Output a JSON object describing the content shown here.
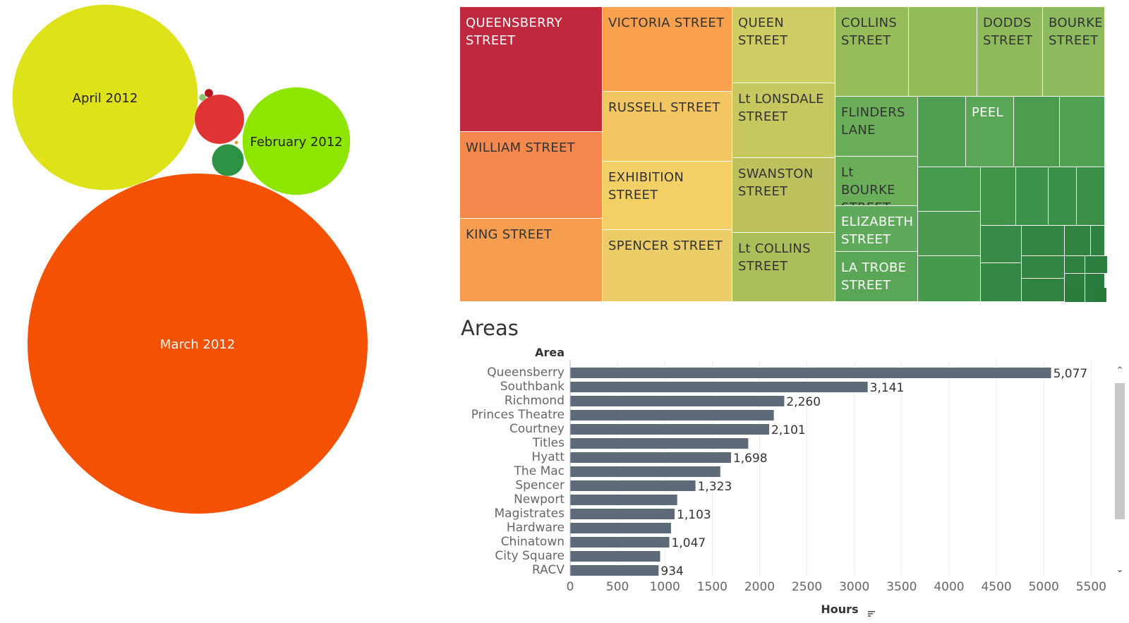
{
  "bubble_chart": {
    "type": "bubble",
    "bubbles": [
      {
        "label": "March 2012",
        "value": 1.0,
        "color": "#f45103",
        "text_color": "#ffffff"
      },
      {
        "label": "April 2012",
        "value": 0.297,
        "color": "#dee219",
        "text_color": "#222222"
      },
      {
        "label": "February 2012",
        "value": 0.1,
        "color": "#8ee600",
        "text_color": "#222222"
      },
      {
        "label": "",
        "value": 0.021,
        "color": "#e03434",
        "text_color": "#222222"
      },
      {
        "label": "",
        "value": 0.0087,
        "color": "#2e9244",
        "text_color": "#222222"
      },
      {
        "label": "",
        "value": 0.0006,
        "color": "#b5141f",
        "text_color": "#222222"
      },
      {
        "label": "",
        "value": 0.0004,
        "color": "#8cc66c",
        "text_color": "#222222"
      },
      {
        "label": "",
        "value": 0.0001,
        "color": "#e89a2b",
        "text_color": "#222222"
      }
    ]
  },
  "treemap": {
    "type": "treemap",
    "labeled_cells": [
      {
        "label": "QUEENSBERRY STREET",
        "color": "#c0283e",
        "text_color": "#ffffff"
      },
      {
        "label": "WILLIAM STREET",
        "color": "#f4884d",
        "text_color": "#333333"
      },
      {
        "label": "KING STREET",
        "color": "#f79d4f",
        "text_color": "#333333"
      },
      {
        "label": "VICTORIA STREET",
        "color": "#f9a14e",
        "text_color": "#333333"
      },
      {
        "label": "RUSSELL STREET",
        "color": "#f4c661",
        "text_color": "#333333"
      },
      {
        "label": "EXHIBITION STREET",
        "color": "#f3d066",
        "text_color": "#333333"
      },
      {
        "label": "SPENCER STREET",
        "color": "#ebcc67",
        "text_color": "#333333"
      },
      {
        "label": "QUEEN STREET",
        "color": "#cfcc63",
        "text_color": "#333333"
      },
      {
        "label": "Lt LONSDALE STREET",
        "color": "#c7c75f",
        "text_color": "#333333"
      },
      {
        "label": "SWANSTON STREET",
        "color": "#bdc15d",
        "text_color": "#333333"
      },
      {
        "label": "Lt COLLINS STREET",
        "color": "#aabf59",
        "text_color": "#333333"
      },
      {
        "label": "COLLINS STREET",
        "color": "#96bd5a",
        "text_color": "#333333"
      },
      {
        "label": "DODDS STREET",
        "color": "#8fba5c",
        "text_color": "#333333"
      },
      {
        "label": "BOURKE STREET",
        "color": "#8cba5c",
        "text_color": "#333333"
      },
      {
        "label": "FLINDERS LANE",
        "color": "#6aae5a",
        "text_color": "#333333"
      },
      {
        "label": "PEEL",
        "color": "#5aa657",
        "text_color": "#ffffff"
      },
      {
        "label": "Lt BOURKE STREET",
        "color": "#6aae5a",
        "text_color": "#333333"
      },
      {
        "label": "ELIZABETH STREET",
        "color": "#5eaa5a",
        "text_color": "#ffffff"
      },
      {
        "label": "LA TROBE STREET",
        "color": "#5aa657",
        "text_color": "#ffffff"
      }
    ]
  },
  "chart_data": {
    "type": "bar",
    "orientation": "horizontal",
    "title": "Areas",
    "category_header": "Area",
    "xlabel": "Hours",
    "categories": [
      "Queensberry",
      "Southbank",
      "Richmond",
      "Princes Theatre",
      "Courtney",
      "Titles",
      "Hyatt",
      "The Mac",
      "Spencer",
      "Newport",
      "Magistrates",
      "Hardware",
      "Chinatown",
      "City Square",
      "RACV"
    ],
    "values": [
      5077,
      3141,
      2260,
      2150,
      2101,
      1880,
      1698,
      1585,
      1323,
      1130,
      1103,
      1065,
      1047,
      950,
      934
    ],
    "data_labels": [
      "5,077",
      "3,141",
      "2,260",
      "",
      "2,101",
      "",
      "1,698",
      "",
      "1,323",
      "",
      "1,103",
      "",
      "1,047",
      "",
      "934"
    ],
    "xlim": [
      0,
      5700
    ],
    "xticks": [
      0,
      500,
      1000,
      1500,
      2000,
      2500,
      3000,
      3500,
      4000,
      4500,
      5000,
      5500
    ],
    "bar_color": "#5d6b79",
    "grid": true
  }
}
